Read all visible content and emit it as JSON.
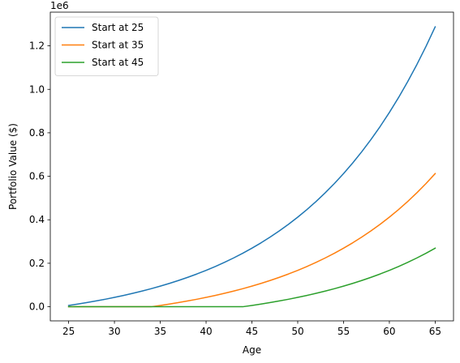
{
  "chart_data": {
    "type": "line",
    "title": "",
    "xlabel": "Age",
    "ylabel": "Portfolio Value ($)",
    "y_offset_label": "1e6",
    "xlim": [
      23.0,
      67.0
    ],
    "ylim": [
      -65000,
      1355000
    ],
    "x_ticks": [
      25,
      30,
      35,
      40,
      45,
      50,
      55,
      60,
      65
    ],
    "y_ticks": [
      0.0,
      0.2,
      0.4,
      0.6,
      0.8,
      1.0,
      1.2
    ],
    "y_tick_scale": 1000000,
    "legend_position": "upper-left",
    "grid": false,
    "series": [
      {
        "name": "Start at 25",
        "color": "#1f77b4",
        "x": [
          25,
          26,
          27,
          28,
          29,
          30,
          31,
          32,
          33,
          34,
          35,
          36,
          37,
          38,
          39,
          40,
          41,
          42,
          43,
          44,
          45,
          46,
          47,
          48,
          49,
          50,
          51,
          52,
          53,
          54,
          55,
          56,
          57,
          58,
          59,
          60,
          61,
          62,
          63,
          64,
          65
        ],
        "y": [
          6000,
          12420,
          19289,
          26640,
          34505,
          42920,
          51925,
          61560,
          71869,
          82900,
          94703,
          107332,
          120845,
          135304,
          150775,
          167329,
          185042,
          203995,
          224274,
          245973,
          269191,
          294034,
          320616,
          349059,
          379493,
          412057,
          446901,
          484184,
          524077,
          566762,
          612435,
          661305,
          713597,
          769549,
          829417,
          893476,
          962019,
          1035360,
          1113835,
          1197804,
          1287650
        ]
      },
      {
        "name": "Start at 35",
        "color": "#ff7f0e",
        "x": [
          25,
          26,
          27,
          28,
          29,
          30,
          31,
          32,
          33,
          34,
          35,
          36,
          37,
          38,
          39,
          40,
          41,
          42,
          43,
          44,
          45,
          46,
          47,
          48,
          49,
          50,
          51,
          52,
          53,
          54,
          55,
          56,
          57,
          58,
          59,
          60,
          61,
          62,
          63,
          64,
          65
        ],
        "y": [
          0,
          0,
          0,
          0,
          0,
          0,
          0,
          0,
          0,
          0,
          6000,
          12420,
          19289,
          26640,
          34505,
          42920,
          51925,
          61560,
          71869,
          82900,
          94703,
          107332,
          120845,
          135304,
          150775,
          167329,
          185042,
          203995,
          224274,
          245973,
          269191,
          294034,
          320616,
          349059,
          379493,
          412057,
          446901,
          484184,
          524077,
          566762,
          612435
        ]
      },
      {
        "name": "Start at 45",
        "color": "#2ca02c",
        "x": [
          25,
          26,
          27,
          28,
          29,
          30,
          31,
          32,
          33,
          34,
          35,
          36,
          37,
          38,
          39,
          40,
          41,
          42,
          43,
          44,
          45,
          46,
          47,
          48,
          49,
          50,
          51,
          52,
          53,
          54,
          55,
          56,
          57,
          58,
          59,
          60,
          61,
          62,
          63,
          64,
          65
        ],
        "y": [
          0,
          0,
          0,
          0,
          0,
          0,
          0,
          0,
          0,
          0,
          0,
          0,
          0,
          0,
          0,
          0,
          0,
          0,
          0,
          0,
          6000,
          12420,
          19289,
          26640,
          34505,
          42920,
          51925,
          61560,
          71869,
          82900,
          94703,
          107332,
          120845,
          135304,
          150775,
          167329,
          185042,
          203995,
          224274,
          245973,
          269191
        ]
      }
    ]
  }
}
